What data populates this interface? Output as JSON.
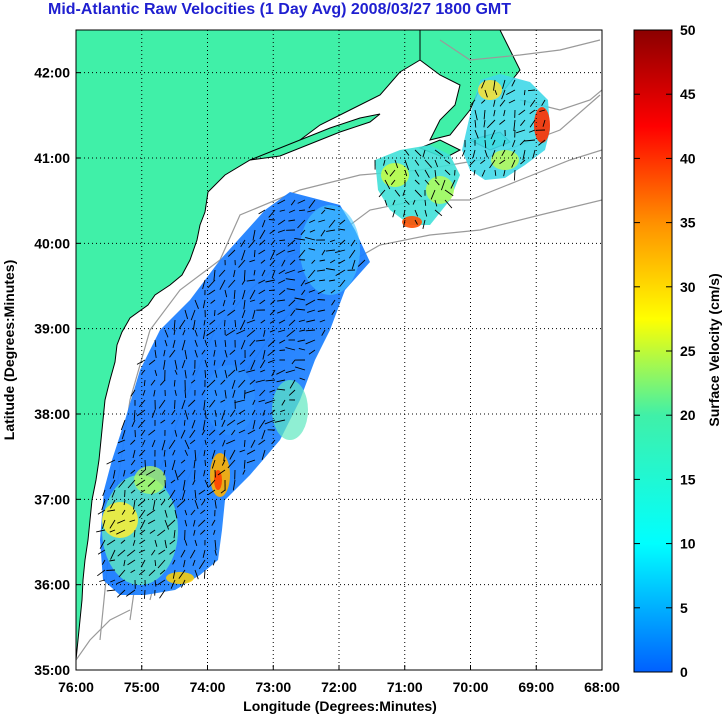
{
  "title": "Mid-Atlantic Raw Velocities (1 Day Avg) 2008/03/27 1800 GMT",
  "x_axis": {
    "label": "Longitude (Degrees:Minutes)",
    "ticks": [
      "76:00",
      "75:00",
      "74:00",
      "73:00",
      "72:00",
      "71:00",
      "70:00",
      "69:00",
      "68:00"
    ]
  },
  "y_axis": {
    "label": "Latitude (Degrees:Minutes)",
    "ticks": [
      "35:00",
      "36:00",
      "37:00",
      "38:00",
      "39:00",
      "40:00",
      "41:00",
      "42:00"
    ]
  },
  "colorbar": {
    "label": "Surface Velocity (cm/s)",
    "ticks": [
      "0",
      "5",
      "10",
      "15",
      "20",
      "25",
      "30",
      "35",
      "40",
      "45",
      "50"
    ],
    "range": [
      0,
      50
    ]
  },
  "colors": {
    "land": "#40f0a8",
    "title": "#1f1fd0",
    "bathymetry": "#9a9a9a"
  },
  "chart_data": {
    "type": "heatmap",
    "title": "Mid-Atlantic Raw Velocities (1 Day Avg) 2008/03/27 1800 GMT",
    "xlabel": "Longitude (Degrees:Minutes)",
    "ylabel": "Latitude (Degrees:Minutes)",
    "xlim": [
      -76,
      -68
    ],
    "ylim": [
      35,
      42.5
    ],
    "grid": true,
    "colorbar_range": [
      0,
      50
    ],
    "colorbar_label": "Surface Velocity (cm/s)"
  }
}
